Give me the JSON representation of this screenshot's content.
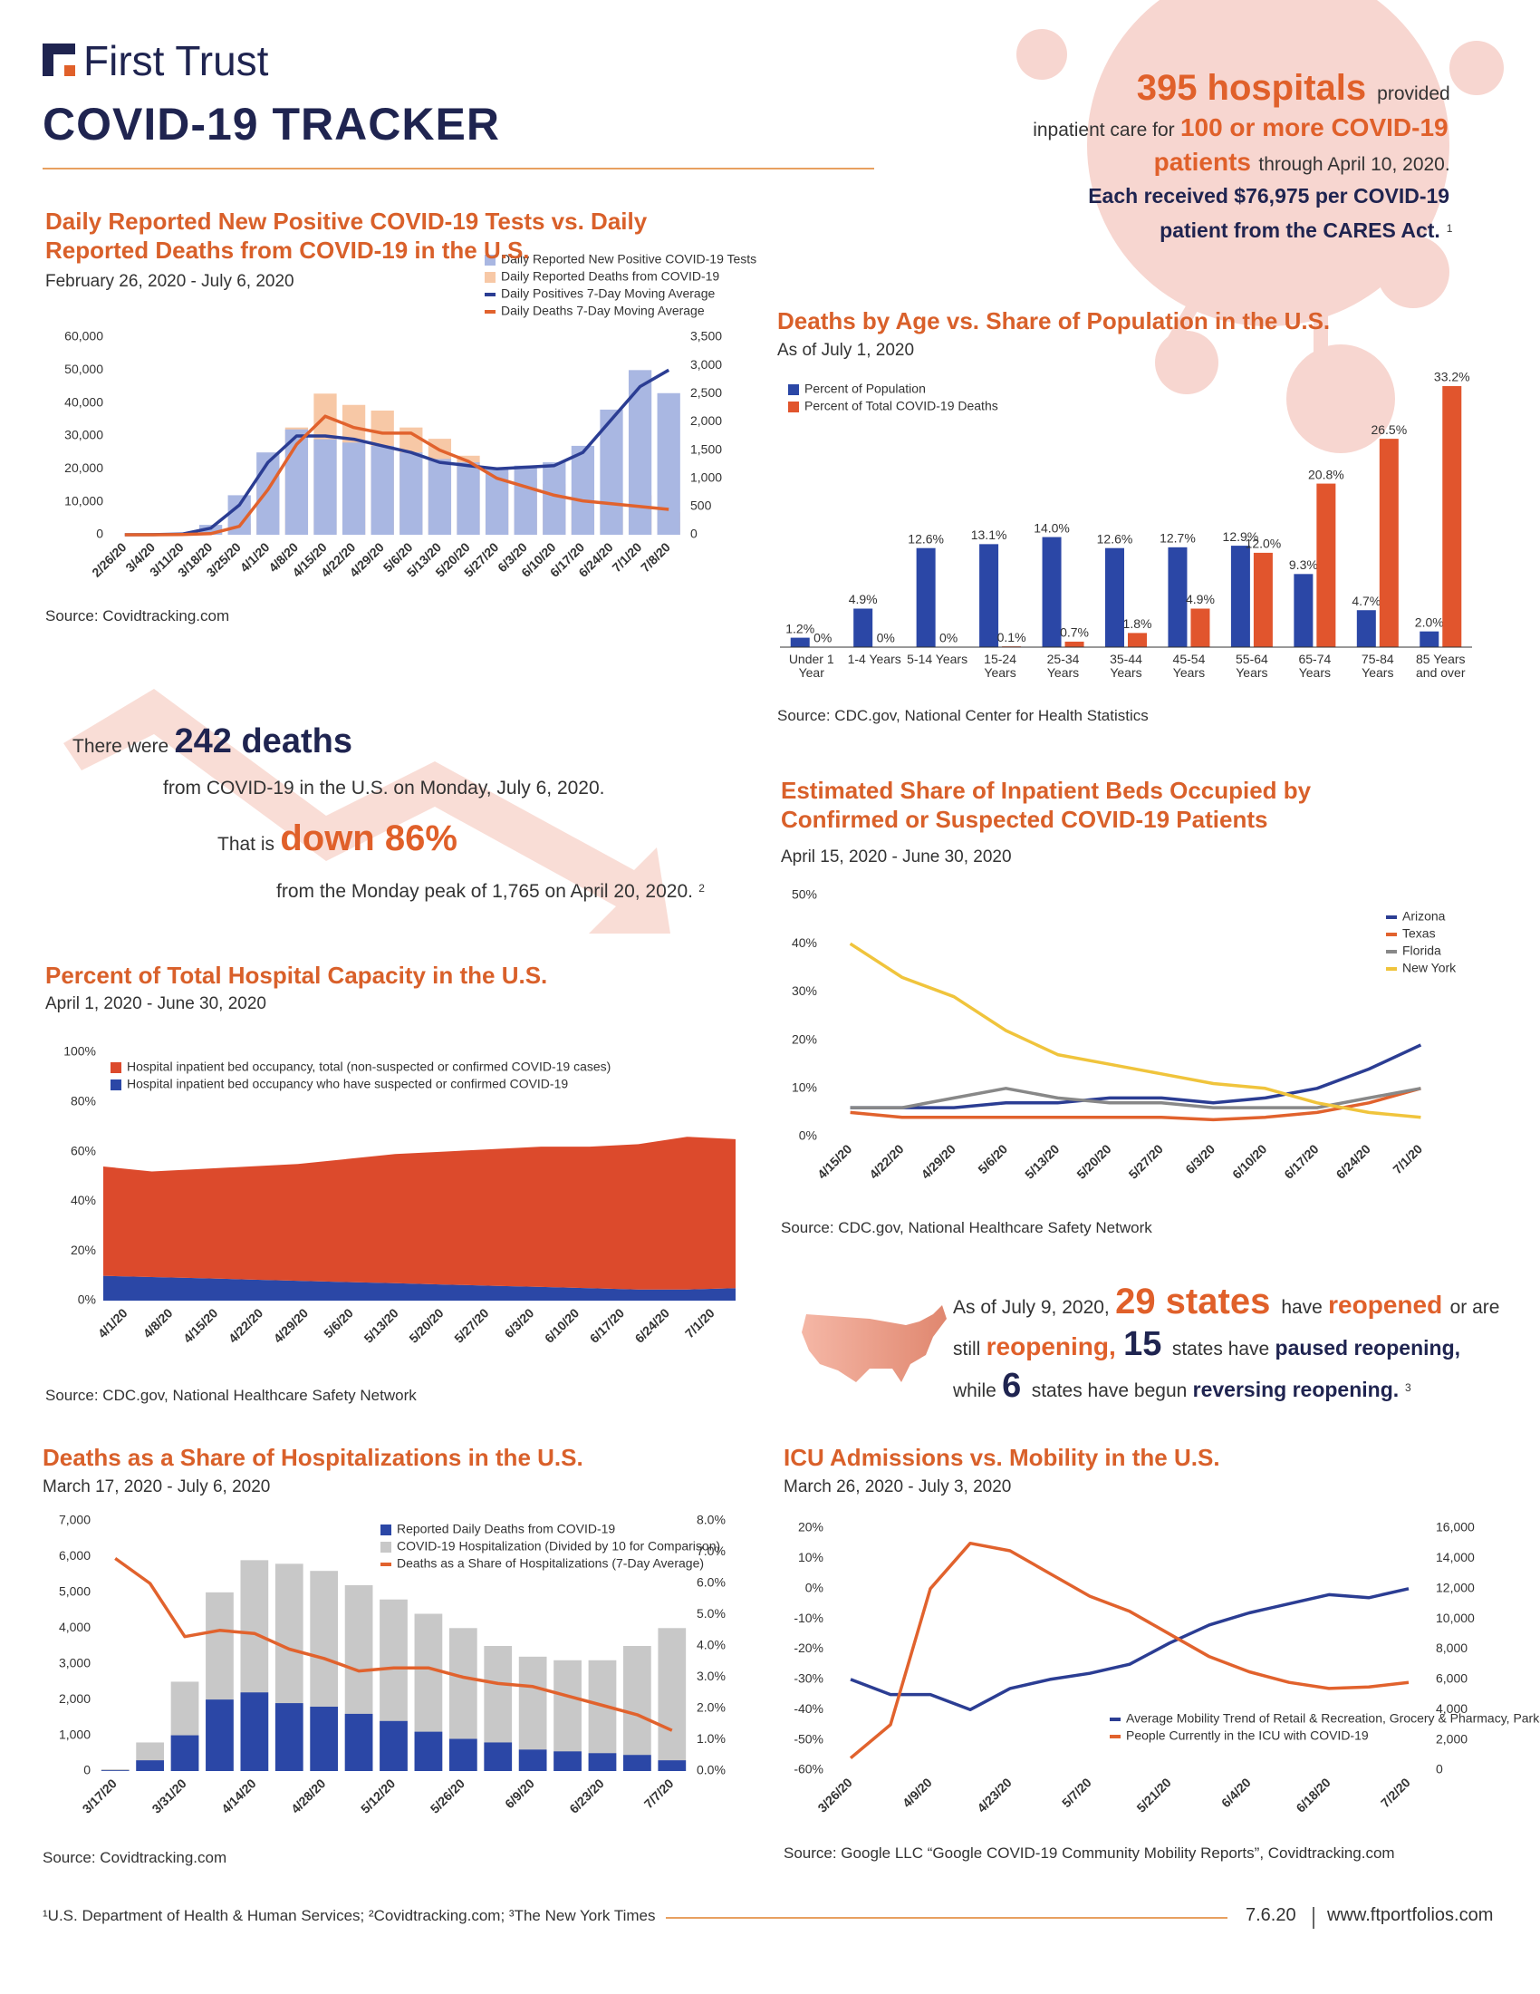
{
  "header": {
    "logo": "First Trust",
    "title": "COVID-19 TRACKER"
  },
  "callouts": [
    {
      "lines": [
        [
          {
            "text": "395 hospitals",
            "style": "big"
          },
          {
            "text": "provided",
            "style": ""
          }
        ],
        [
          {
            "text": "inpatient care for",
            "style": ""
          },
          {
            "text": "100 or more COVID-19",
            "style": "med"
          }
        ],
        [
          {
            "text": "patients",
            "style": "med"
          },
          {
            "text": "through April 10, 2020.",
            "style": ""
          }
        ],
        [
          {
            "text": "Each received $76,975 per COVID-19",
            "style": "bold"
          }
        ],
        [
          {
            "text": "patient from the CARES Act.",
            "style": "bold"
          },
          {
            "text": "1",
            "style": "sup"
          }
        ]
      ]
    },
    {
      "lines": [
        [
          {
            "text": "There were",
            "style": ""
          },
          {
            "text": "242 deaths",
            "style": "navy"
          }
        ],
        [
          {
            "text": "from COVID-19 in the U.S. on Monday, July 6, 2020.",
            "style": ""
          }
        ],
        [
          {
            "text": "That is",
            "style": ""
          },
          {
            "text": "down 86%",
            "style": "big"
          }
        ],
        [
          {
            "text": "from the Monday peak of 1,765 on April 20, 2020.",
            "style": ""
          },
          {
            "text": "2",
            "style": "sup"
          }
        ]
      ]
    },
    {
      "lines": [
        [
          {
            "text": "As of July 9, 2020,",
            "style": ""
          },
          {
            "text": "29 states",
            "style": "big"
          },
          {
            "text": "have",
            "style": ""
          },
          {
            "text": "reopened",
            "style": "med"
          },
          {
            "text": "or are",
            "style": ""
          }
        ],
        [
          {
            "text": "still",
            "style": ""
          },
          {
            "text": "reopening,",
            "style": "med"
          },
          {
            "text": "15",
            "style": "navy"
          },
          {
            "text": "states have",
            "style": ""
          },
          {
            "text": "paused reopening,",
            "style": "bold"
          }
        ],
        [
          {
            "text": "while",
            "style": ""
          },
          {
            "text": "6",
            "style": "navy"
          },
          {
            "text": "states have begun",
            "style": ""
          },
          {
            "text": "reversing reopening.",
            "style": "bold"
          },
          {
            "text": "3",
            "style": "sup"
          }
        ]
      ]
    }
  ],
  "chart_data": [
    {
      "type": "combo",
      "title": "Daily Reported New Positive COVID-19 Tests vs. Daily Reported Deaths from COVID-19 in the U.S.",
      "subtitle": "February 26, 2020 - July 6, 2020",
      "source": "Source: Covidtracking.com",
      "categories": [
        "2/26/20",
        "3/4/20",
        "3/11/20",
        "3/18/20",
        "3/25/20",
        "4/1/20",
        "4/8/20",
        "4/15/20",
        "4/22/20",
        "4/29/20",
        "5/6/20",
        "5/13/20",
        "5/20/20",
        "5/27/20",
        "6/3/20",
        "6/10/20",
        "6/17/20",
        "6/24/20",
        "7/1/20",
        "7/8/20"
      ],
      "series": [
        {
          "name": "Daily Reported New Positive COVID-19 Tests",
          "kind": "bar",
          "color": "#a9b7e2",
          "values": [
            0,
            50,
            300,
            3000,
            12000,
            25000,
            32000,
            29000,
            28000,
            27000,
            25000,
            23000,
            22000,
            20000,
            21000,
            22000,
            27000,
            38000,
            50000,
            43000
          ]
        },
        {
          "name": "Daily Reported Deaths from COVID-19",
          "kind": "bar",
          "axis": "y2",
          "color": "#f7c8a6",
          "values": [
            0,
            0,
            5,
            30,
            200,
            1000,
            1900,
            2500,
            2300,
            2200,
            1900,
            1700,
            1400,
            1100,
            1000,
            900,
            700,
            600,
            700,
            400
          ]
        },
        {
          "name": "Daily Positives 7-Day Moving Average",
          "kind": "line",
          "color": "#2b3d93",
          "values": [
            0,
            20,
            200,
            2000,
            9000,
            22000,
            30000,
            30000,
            29000,
            27000,
            25000,
            22000,
            21000,
            20000,
            20500,
            21000,
            25000,
            35000,
            45000,
            50000
          ]
        },
        {
          "name": "Daily Deaths 7-Day Moving Average",
          "kind": "line",
          "axis": "y2",
          "color": "#e1622d",
          "values": [
            0,
            0,
            5,
            20,
            150,
            800,
            1600,
            2100,
            1900,
            1800,
            1800,
            1500,
            1300,
            1000,
            850,
            700,
            600,
            550,
            500,
            450
          ]
        }
      ],
      "ylim": [
        0,
        60000
      ],
      "yticks": [
        0,
        {
          "value": 10000,
          "label": "10,000"
        },
        {
          "value": 20000,
          "label": "20,000"
        },
        {
          "value": 30000,
          "label": "30,000"
        },
        {
          "value": 40000,
          "label": "40,000"
        },
        {
          "value": 50000,
          "label": "50,000"
        },
        {
          "value": 60000,
          "label": "60,000"
        }
      ],
      "y2lim": [
        0,
        3500
      ],
      "y2ticks": [
        0,
        500,
        {
          "value": 1000,
          "label": "1,000"
        },
        {
          "value": 1500,
          "label": "1,500"
        },
        {
          "value": 2000,
          "label": "2,000"
        },
        {
          "value": 2500,
          "label": "2,500"
        },
        {
          "value": 3000,
          "label": "3,000"
        },
        {
          "value": 3500,
          "label": "3,500"
        }
      ]
    },
    {
      "type": "bar",
      "title": "Deaths by Age vs. Share of Population in the U.S.",
      "subtitle": "As of July 1, 2020",
      "source": "Source: CDC.gov, National Center for Health Statistics",
      "categories": [
        "Under 1 Year",
        "1-4 Years",
        "5-14 Years",
        "15-24 Years",
        "25-34 Years",
        "35-44 Years",
        "45-54 Years",
        "55-64 Years",
        "65-74 Years",
        "75-84 Years",
        "85 Years and over"
      ],
      "series": [
        {
          "name": "Percent of Population",
          "color": "#2b47a6",
          "values": [
            1.2,
            4.9,
            12.6,
            13.1,
            14.0,
            12.6,
            12.7,
            12.9,
            9.3,
            4.7,
            2.0
          ],
          "value_labels": [
            "1.2%",
            "4.9%",
            "12.6%",
            "13.1%",
            "14.0%",
            "12.6%",
            "12.7%",
            "12.9%",
            "9.3%",
            "4.7%",
            "2.0%"
          ]
        },
        {
          "name": "Percent of Total COVID-19 Deaths",
          "color": "#e1552d",
          "values": [
            0,
            0,
            0,
            0.1,
            0.7,
            1.8,
            4.9,
            12.0,
            20.8,
            26.5,
            33.2
          ],
          "value_labels": [
            "0%",
            "0%",
            "0%",
            "0.1%",
            "0.7%",
            "1.8%",
            "4.9%",
            "12.0%",
            "20.8%",
            "26.5%",
            "33.2%"
          ]
        }
      ]
    },
    {
      "type": "line",
      "title": "Estimated Share of Inpatient Beds Occupied by Confirmed or Suspected COVID-19 Patients",
      "subtitle": "April 15, 2020 - June 30, 2020",
      "source": "Source: CDC.gov, National Healthcare Safety Network",
      "categories": [
        "4/15/20",
        "4/22/20",
        "4/29/20",
        "5/6/20",
        "5/13/20",
        "5/20/20",
        "5/27/20",
        "6/3/20",
        "6/10/20",
        "6/17/20",
        "6/24/20",
        "7/1/20"
      ],
      "series": [
        {
          "name": "Arizona",
          "color": "#2b3d93",
          "values": [
            6,
            6,
            6,
            7,
            7,
            8,
            8,
            7,
            8,
            10,
            14,
            19
          ]
        },
        {
          "name": "Texas",
          "color": "#e1622d",
          "values": [
            5,
            4,
            4,
            4,
            4,
            4,
            4,
            3.5,
            4,
            5,
            7,
            10
          ]
        },
        {
          "name": "Florida",
          "color": "#888888",
          "values": [
            6,
            6,
            8,
            10,
            8,
            7,
            7,
            6,
            6,
            6,
            8,
            10
          ]
        },
        {
          "name": "New York",
          "color": "#f0c43c",
          "values": [
            40,
            33,
            29,
            22,
            17,
            15,
            13,
            11,
            10,
            7,
            5,
            4
          ]
        }
      ],
      "ylim": [
        0,
        50
      ],
      "yticks": [
        {
          "value": 0,
          "label": "0%"
        },
        {
          "value": 10,
          "label": "10%"
        },
        {
          "value": 20,
          "label": "20%"
        },
        {
          "value": 30,
          "label": "30%"
        },
        {
          "value": 40,
          "label": "40%"
        },
        {
          "value": 50,
          "label": "50%"
        }
      ]
    },
    {
      "type": "area",
      "title": "Percent of Total Hospital Capacity in the U.S.",
      "subtitle": "April 1, 2020 - June 30, 2020",
      "source": "Source: CDC.gov, National Healthcare Safety Network",
      "categories": [
        "4/1/20",
        "4/8/20",
        "4/15/20",
        "4/22/20",
        "4/29/20",
        "5/6/20",
        "5/13/20",
        "5/20/20",
        "5/27/20",
        "6/3/20",
        "6/10/20",
        "6/17/20",
        "6/24/20",
        "7/1/20"
      ],
      "series": [
        {
          "name": "Hospital inpatient bed occupancy, total (non-suspected or confirmed COVID-19 cases)",
          "color": "#dc4a2c",
          "values": [
            44,
            42.5,
            44,
            45.5,
            47,
            49.5,
            52,
            53.5,
            55,
            56.5,
            57,
            58.5,
            61.5,
            60
          ]
        },
        {
          "name": "Hospital inpatient bed occupancy who have suspected or confirmed COVID-19",
          "color": "#2b47a6",
          "values": [
            10,
            9.5,
            9,
            8.5,
            8,
            7.5,
            7,
            6.5,
            6,
            5.5,
            5,
            4.5,
            4.5,
            5
          ]
        }
      ],
      "ylim": [
        0,
        100
      ],
      "yticks": [
        {
          "value": 0,
          "label": "0%"
        },
        {
          "value": 20,
          "label": "20%"
        },
        {
          "value": 40,
          "label": "40%"
        },
        {
          "value": 60,
          "label": "60%"
        },
        {
          "value": 80,
          "label": "80%"
        },
        {
          "value": 100,
          "label": "100%"
        }
      ]
    },
    {
      "type": "combo",
      "title": "Deaths as a Share of Hospitalizations in the U.S.",
      "subtitle": "March 17, 2020 - July 6, 2020",
      "source": "Source: Covidtracking.com",
      "categories": [
        "3/17/20",
        null,
        "3/31/20",
        null,
        "4/14/20",
        null,
        "4/28/20",
        null,
        "5/12/20",
        null,
        "5/26/20",
        null,
        "6/9/20",
        null,
        "6/23/20",
        null,
        "7/7/20"
      ],
      "series": [
        {
          "name": "Reported Daily Deaths from COVID-19",
          "kind": "bar",
          "color": "#2b47a6",
          "values": [
            20,
            300,
            1000,
            2000,
            2200,
            1900,
            1800,
            1600,
            1400,
            1100,
            900,
            800,
            600,
            550,
            500,
            450,
            300
          ]
        },
        {
          "name": "COVID-19 Hospitalization (Divided by 10 for Comparison)",
          "kind": "bar",
          "color": "#c8c8c8",
          "values": [
            50,
            800,
            2500,
            5000,
            5900,
            5800,
            5600,
            5200,
            4800,
            4400,
            4000,
            3500,
            3200,
            3100,
            3100,
            3500,
            4000
          ]
        },
        {
          "name": "Deaths as a Share of Hospitalizations (7-Day Average)",
          "kind": "line",
          "axis": "y2",
          "color": "#e1622d",
          "values": [
            6.8,
            6.0,
            4.3,
            4.5,
            4.4,
            3.9,
            3.6,
            3.2,
            3.3,
            3.3,
            3.0,
            2.8,
            2.7,
            2.4,
            2.1,
            1.8,
            1.3
          ]
        }
      ],
      "ylim": [
        0,
        7000
      ],
      "yticks": [
        0,
        {
          "value": 1000,
          "label": "1,000"
        },
        {
          "value": 2000,
          "label": "2,000"
        },
        {
          "value": 3000,
          "label": "3,000"
        },
        {
          "value": 4000,
          "label": "4,000"
        },
        {
          "value": 5000,
          "label": "5,000"
        },
        {
          "value": 6000,
          "label": "6,000"
        },
        {
          "value": 7000,
          "label": "7,000"
        }
      ],
      "y2lim": [
        0,
        8
      ],
      "y2ticks": [
        {
          "value": 0,
          "label": "0.0%"
        },
        {
          "value": 1,
          "label": "1.0%"
        },
        {
          "value": 2,
          "label": "2.0%"
        },
        {
          "value": 3,
          "label": "3.0%"
        },
        {
          "value": 4,
          "label": "4.0%"
        },
        {
          "value": 5,
          "label": "5.0%"
        },
        {
          "value": 6,
          "label": "6.0%"
        },
        {
          "value": 7,
          "label": "7.0%"
        },
        {
          "value": 8,
          "label": "8.0%"
        }
      ]
    },
    {
      "type": "line",
      "title": "ICU Admissions vs. Mobility in the U.S.",
      "subtitle": "March 26, 2020 - July 3, 2020",
      "source": "Source: Google LLC “Google COVID-19 Community Mobility Reports”, Covidtracking.com",
      "categories": [
        "3/26/20",
        null,
        "4/9/20",
        null,
        "4/23/20",
        null,
        "5/7/20",
        null,
        "5/21/20",
        null,
        "6/4/20",
        null,
        "6/18/20",
        null,
        "7/2/20"
      ],
      "series": [
        {
          "name": "Average Mobility Trend of Retail & Recreation, Grocery & Pharmacy, Parks, Transit Stations, and Workplaces",
          "color": "#2b3d93",
          "values": [
            -30,
            -35,
            -35,
            -40,
            -33,
            -30,
            -28,
            -25,
            -18,
            -12,
            -8,
            -5,
            -2,
            -3,
            0
          ]
        },
        {
          "name": "People Currently in the ICU with COVID-19",
          "axis": "y2",
          "color": "#e1622d",
          "values": [
            800,
            3000,
            12000,
            15000,
            14500,
            13000,
            11500,
            10500,
            9000,
            7500,
            6500,
            5800,
            5400,
            5500,
            5800
          ]
        }
      ],
      "ylim": [
        -60,
        20
      ],
      "yticks": [
        {
          "value": -60,
          "label": "-60%"
        },
        {
          "value": -50,
          "label": "-50%"
        },
        {
          "value": -40,
          "label": "-40%"
        },
        {
          "value": -30,
          "label": "-30%"
        },
        {
          "value": -20,
          "label": "-20%"
        },
        {
          "value": -10,
          "label": "-10%"
        },
        {
          "value": 0,
          "label": "0%"
        },
        {
          "value": 10,
          "label": "10%"
        },
        {
          "value": 20,
          "label": "20%"
        }
      ],
      "y2lim": [
        0,
        16000
      ],
      "y2ticks": [
        0,
        {
          "value": 2000,
          "label": "2,000"
        },
        {
          "value": 4000,
          "label": "4,000"
        },
        {
          "value": 6000,
          "label": "6,000"
        },
        {
          "value": 8000,
          "label": "8,000"
        },
        {
          "value": 10000,
          "label": "10,000"
        },
        {
          "value": 12000,
          "label": "12,000"
        },
        {
          "value": 14000,
          "label": "14,000"
        },
        {
          "value": 16000,
          "label": "16,000"
        }
      ]
    }
  ],
  "footer": {
    "sources": "¹U.S. Department of Health & Human Services; ²Covidtracking.com; ³The New York Times",
    "date": "7.6.20",
    "url": "www.ftportfolios.com"
  }
}
